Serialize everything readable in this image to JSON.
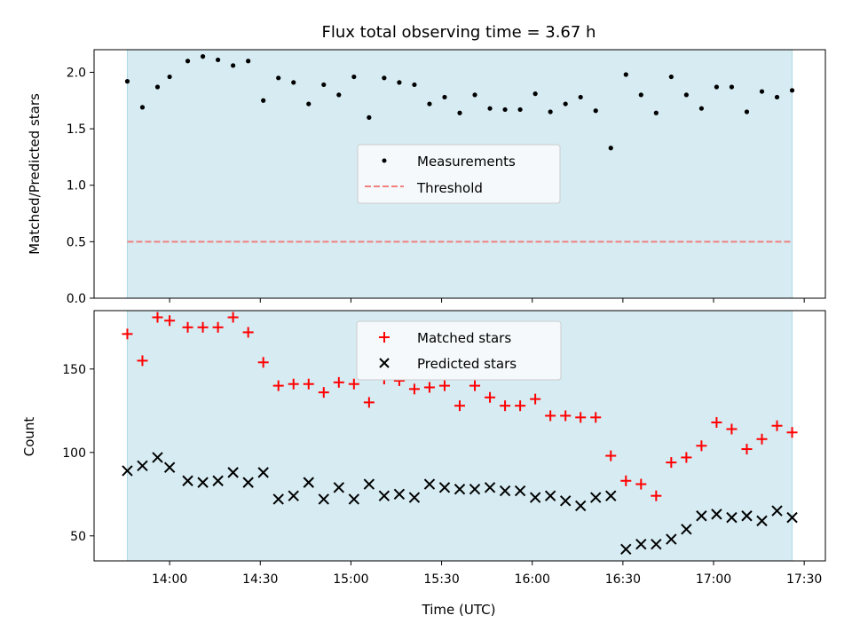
{
  "chart_data": [
    {
      "type": "scatter",
      "title": "Flux total observing time = 3.67 h",
      "xlabel": "",
      "ylabel": "Matched/Predicted stars",
      "ylim": [
        0,
        2.2
      ],
      "yticks": [
        0.0,
        0.5,
        1.0,
        1.5,
        2.0
      ],
      "ytick_labels": [
        "0.0",
        "0.5",
        "1.0",
        "1.5",
        "2.0"
      ],
      "observing_window": [
        "13:46",
        "17:26"
      ],
      "colors": {
        "window": "#add8e6",
        "measurements": "#000000",
        "threshold": "#f08080"
      },
      "legend": {
        "placement": "center",
        "entries": [
          {
            "label": "Measurements",
            "marker": "dot",
            "color": "#000000"
          },
          {
            "label": "Threshold",
            "marker": "dashed-line",
            "color": "#f08080"
          }
        ]
      },
      "threshold": 0.5,
      "series": [
        {
          "name": "Measurements",
          "x": [
            "13:46",
            "13:51",
            "13:56",
            "14:00",
            "14:06",
            "14:11",
            "14:16",
            "14:21",
            "14:26",
            "14:31",
            "14:36",
            "14:41",
            "14:46",
            "14:51",
            "14:56",
            "15:01",
            "15:06",
            "15:11",
            "15:16",
            "15:21",
            "15:26",
            "15:31",
            "15:36",
            "15:41",
            "15:46",
            "15:51",
            "15:56",
            "16:01",
            "16:06",
            "16:11",
            "16:16",
            "16:21",
            "16:26",
            "16:31",
            "16:36",
            "16:41",
            "16:46",
            "16:51",
            "16:56",
            "17:01",
            "17:06",
            "17:11",
            "17:16",
            "17:21",
            "17:26"
          ],
          "values": [
            1.92,
            1.69,
            1.87,
            1.96,
            2.1,
            2.14,
            2.11,
            2.06,
            2.1,
            1.75,
            1.95,
            1.91,
            1.72,
            1.89,
            1.8,
            1.96,
            1.6,
            1.95,
            1.91,
            1.89,
            1.72,
            1.78,
            1.64,
            1.8,
            1.68,
            1.67,
            1.67,
            1.81,
            1.65,
            1.72,
            1.78,
            1.66,
            1.33,
            1.98,
            1.8,
            1.64,
            1.96,
            1.8,
            1.68,
            1.87,
            1.87,
            1.65,
            1.83,
            1.78,
            1.84
          ]
        }
      ]
    },
    {
      "type": "scatter",
      "xlabel": "Time (UTC)",
      "ylabel": "Count",
      "xlim": [
        "13:35",
        "17:37"
      ],
      "xticks": [
        "14:00",
        "14:30",
        "15:00",
        "15:30",
        "16:00",
        "16:30",
        "17:00",
        "17:30"
      ],
      "ylim": [
        35,
        185
      ],
      "yticks": [
        50,
        100,
        150
      ],
      "ytick_labels": [
        "50",
        "100",
        "150"
      ],
      "observing_window": [
        "13:46",
        "17:26"
      ],
      "colors": {
        "window": "#add8e6",
        "matched": "#ff0000",
        "predicted": "#000000"
      },
      "legend": {
        "placement": "top-center",
        "entries": [
          {
            "label": "Matched stars",
            "marker": "+",
            "color": "#ff0000"
          },
          {
            "label": "Predicted stars",
            "marker": "x",
            "color": "#000000"
          }
        ]
      },
      "series": [
        {
          "name": "Matched stars",
          "x": [
            "13:46",
            "13:51",
            "13:56",
            "14:00",
            "14:06",
            "14:11",
            "14:16",
            "14:21",
            "14:26",
            "14:31",
            "14:36",
            "14:41",
            "14:46",
            "14:51",
            "14:56",
            "15:01",
            "15:06",
            "15:11",
            "15:16",
            "15:21",
            "15:26",
            "15:31",
            "15:36",
            "15:41",
            "15:46",
            "15:51",
            "15:56",
            "16:01",
            "16:06",
            "16:11",
            "16:16",
            "16:21",
            "16:26",
            "16:31",
            "16:36",
            "16:41",
            "16:46",
            "16:51",
            "16:56",
            "17:01",
            "17:06",
            "17:11",
            "17:16",
            "17:21",
            "17:26"
          ],
          "values": [
            171,
            155,
            181,
            179,
            175,
            175,
            175,
            181,
            172,
            154,
            140,
            141,
            141,
            136,
            142,
            141,
            130,
            144,
            143,
            138,
            139,
            140,
            128,
            140,
            133,
            128,
            128,
            132,
            122,
            122,
            121,
            121,
            98,
            83,
            81,
            74,
            94,
            97,
            104,
            118,
            114,
            102,
            108,
            116,
            112
          ]
        },
        {
          "name": "Predicted stars",
          "x": [
            "13:46",
            "13:51",
            "13:56",
            "14:00",
            "14:06",
            "14:11",
            "14:16",
            "14:21",
            "14:26",
            "14:31",
            "14:36",
            "14:41",
            "14:46",
            "14:51",
            "14:56",
            "15:01",
            "15:06",
            "15:11",
            "15:16",
            "15:21",
            "15:26",
            "15:31",
            "15:36",
            "15:41",
            "15:46",
            "15:51",
            "15:56",
            "16:01",
            "16:06",
            "16:11",
            "16:16",
            "16:21",
            "16:26",
            "16:31",
            "16:36",
            "16:41",
            "16:46",
            "16:51",
            "16:56",
            "17:01",
            "17:06",
            "17:11",
            "17:16",
            "17:21",
            "17:26"
          ],
          "values": [
            89,
            92,
            97,
            91,
            83,
            82,
            83,
            88,
            82,
            88,
            72,
            74,
            82,
            72,
            79,
            72,
            81,
            74,
            75,
            73,
            81,
            79,
            78,
            78,
            79,
            77,
            77,
            73,
            74,
            71,
            68,
            73,
            74,
            42,
            45,
            45,
            48,
            54,
            62,
            63,
            61,
            62,
            59,
            65,
            61
          ]
        }
      ]
    }
  ]
}
